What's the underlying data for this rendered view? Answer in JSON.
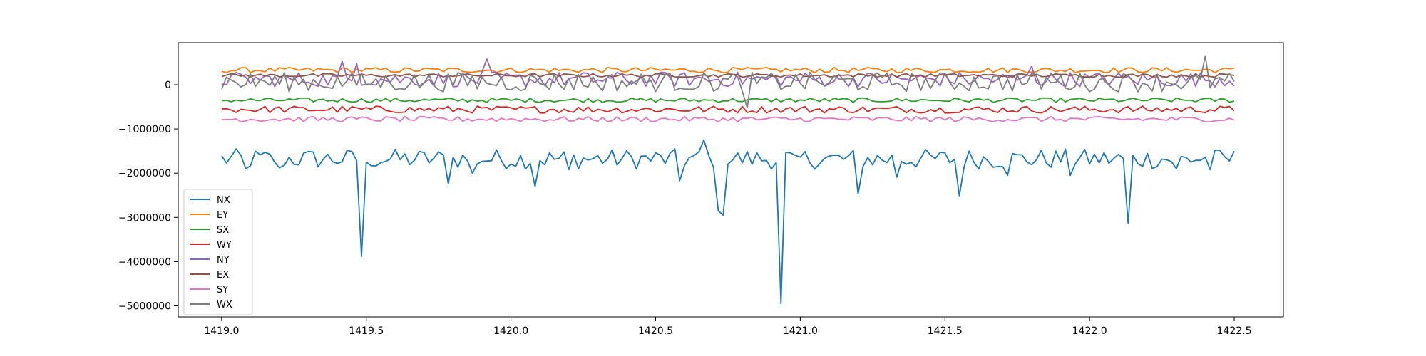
{
  "chart_data": {
    "type": "line",
    "title": "",
    "xlabel": "",
    "ylabel": "",
    "xlim": [
      1418.85,
      1422.67
    ],
    "ylim": [
      -5250000,
      950000
    ],
    "x_ticks": [
      1419.0,
      1419.5,
      1420.0,
      1420.5,
      1421.0,
      1421.5,
      1422.0,
      1422.5
    ],
    "x_tick_labels": [
      "1419.0",
      "1419.5",
      "1420.0",
      "1420.5",
      "1421.0",
      "1421.5",
      "1422.0",
      "1422.5"
    ],
    "y_ticks": [
      0,
      -1000000,
      -2000000,
      -3000000,
      -4000000,
      -5000000
    ],
    "y_tick_labels": [
      "0",
      "−1000000",
      "−2000000",
      "−3000000",
      "−4000000",
      "−5000000"
    ],
    "grid": false,
    "legend_position": "lower-left",
    "x": {
      "start": 1419.0,
      "end": 1422.5,
      "count": 211
    },
    "series": [
      {
        "name": "NX",
        "color": "#1f77b4",
        "base": -1680000,
        "noise": 230000,
        "spikes": [
          [
            1419.08,
            -1900000
          ],
          [
            1419.2,
            -1880000
          ],
          [
            1419.48,
            -3880000
          ],
          [
            1419.5,
            -1750000
          ],
          [
            1419.78,
            -2240000
          ],
          [
            1419.86,
            -2000000
          ],
          [
            1420.08,
            -2300000
          ],
          [
            1420.2,
            -1920000
          ],
          [
            1420.58,
            -2170000
          ],
          [
            1420.66,
            -1250000
          ],
          [
            1420.72,
            -2850000
          ],
          [
            1420.74,
            -2950000
          ],
          [
            1420.94,
            -4950000
          ],
          [
            1420.98,
            -1600000
          ],
          [
            1421.2,
            -2470000
          ],
          [
            1421.33,
            -2090000
          ],
          [
            1421.55,
            -2510000
          ],
          [
            1421.72,
            -2050000
          ],
          [
            1421.93,
            -2050000
          ],
          [
            1422.13,
            -3130000
          ],
          [
            1422.3,
            -1900000
          ],
          [
            1422.42,
            -1920000
          ]
        ]
      },
      {
        "name": "EY",
        "color": "#ff7f0e",
        "base": 330000,
        "noise": 60000,
        "spikes": []
      },
      {
        "name": "SX",
        "color": "#2ca02c",
        "base": -350000,
        "noise": 50000,
        "spikes": []
      },
      {
        "name": "WY",
        "color": "#d62728",
        "base": -560000,
        "noise": 80000,
        "spikes": []
      },
      {
        "name": "NY",
        "color": "#9467bd",
        "base": 120000,
        "noise": 170000,
        "spikes": [
          [
            1419.42,
            530000
          ],
          [
            1419.47,
            480000
          ],
          [
            1419.92,
            580000
          ],
          [
            1421.8,
            420000
          ]
        ]
      },
      {
        "name": "EX",
        "color": "#8c564b",
        "base": 210000,
        "noise": 40000,
        "spikes": []
      },
      {
        "name": "SY",
        "color": "#e377c2",
        "base": -780000,
        "noise": 60000,
        "spikes": []
      },
      {
        "name": "WX",
        "color": "#7f7f7f",
        "base": 60000,
        "noise": 220000,
        "spikes": [
          [
            1420.82,
            -520000
          ],
          [
            1422.4,
            650000
          ]
        ]
      }
    ]
  }
}
